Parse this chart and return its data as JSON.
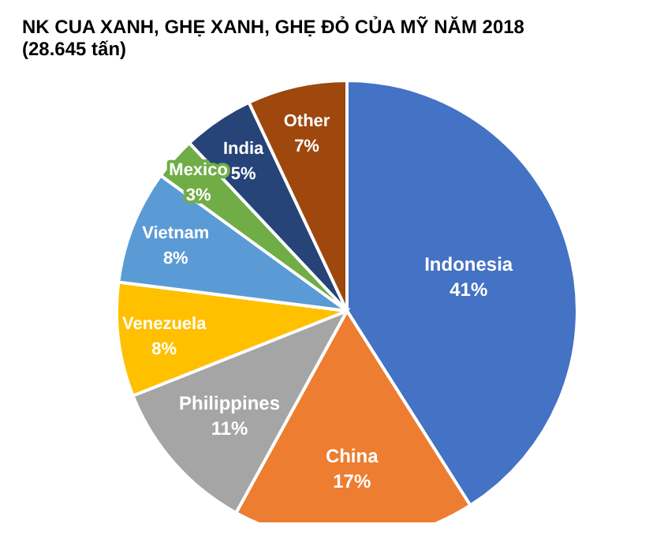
{
  "chart_data": {
    "type": "pie",
    "title": "NK CUA XANH, GHẸ XANH, GHẸ ĐỎ CỦA MỸ NĂM 2018",
    "subtitle": "(28.645 tấn)",
    "categories": [
      "Indonesia",
      "China",
      "Philippines",
      "Venezuela",
      "Vietnam",
      "Mexico",
      "India",
      "Other"
    ],
    "values": [
      41,
      17,
      11,
      8,
      8,
      3,
      5,
      7
    ],
    "value_labels": [
      "41%",
      "17%",
      "11%",
      "8%",
      "8%",
      "3%",
      "5%",
      "7%"
    ],
    "colors": [
      "#4472c4",
      "#ed7d31",
      "#a5a5a5",
      "#ffc000",
      "#5b9bd5",
      "#70ad47",
      "#264478",
      "#9e480e"
    ],
    "legend": false
  }
}
